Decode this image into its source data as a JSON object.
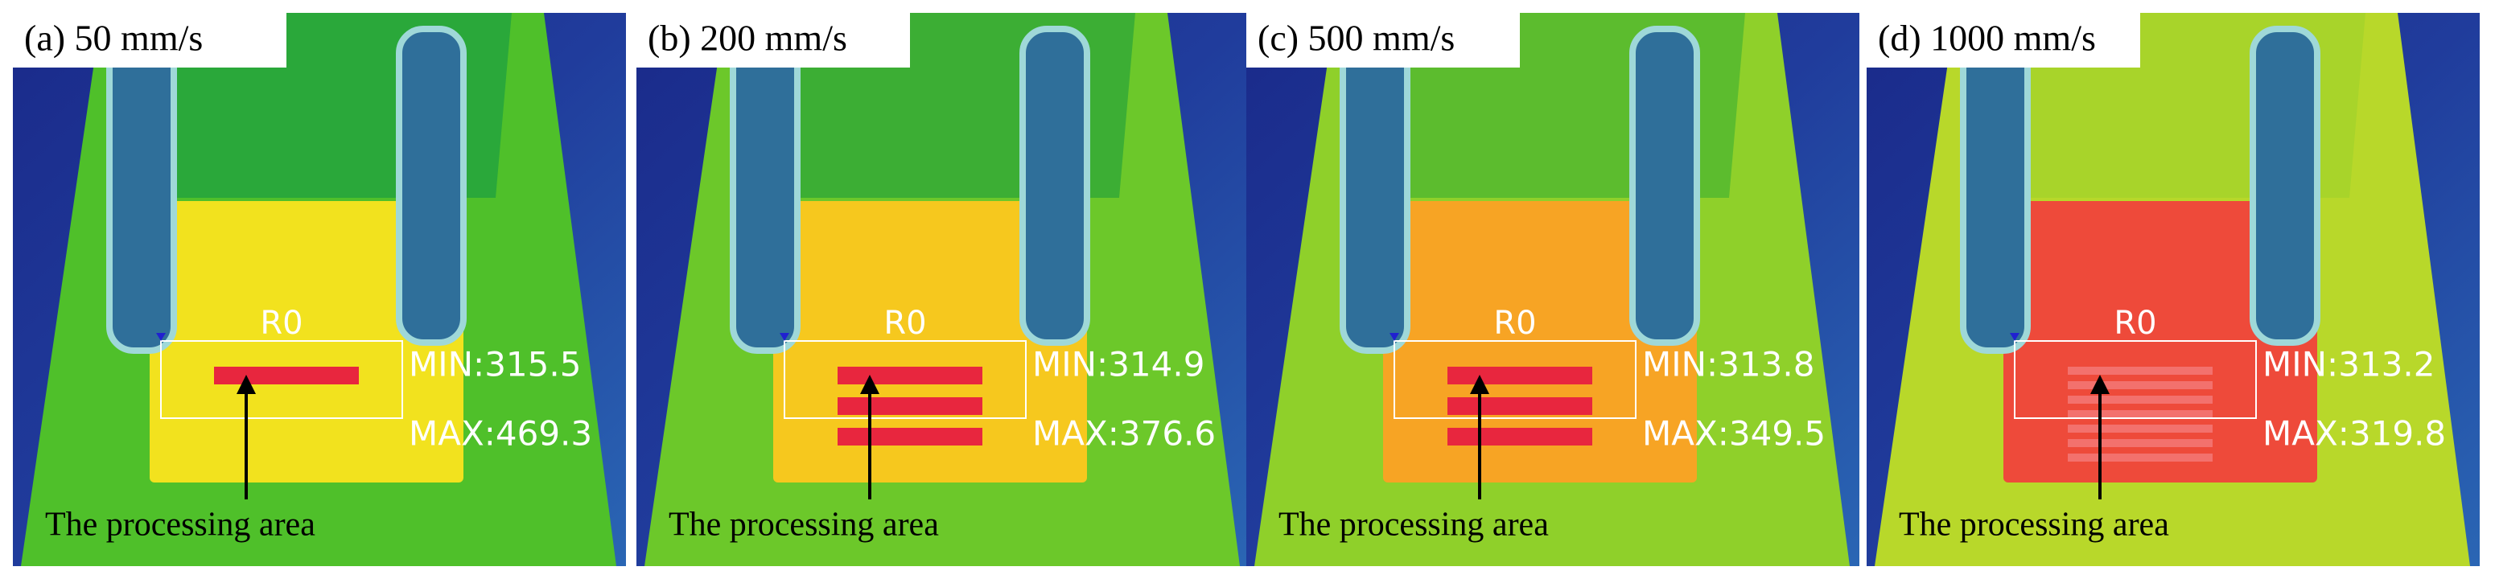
{
  "panels": [
    {
      "label": "(a) 50 mm/s",
      "roi": "R0",
      "min": "MIN:315.5",
      "max": "MAX:469.3",
      "annotation": "The processing area"
    },
    {
      "label": "(b) 200 mm/s",
      "roi": "R0",
      "min": "MIN:314.9",
      "max": "MAX:376.6",
      "annotation": "The processing area"
    },
    {
      "label": "(c) 500 mm/s",
      "roi": "R0",
      "min": "MIN:313.8",
      "max": "MAX:349.5",
      "annotation": "The processing area"
    },
    {
      "label": "(d) 1000 mm/s",
      "roi": "R0",
      "min": "MIN:313.2",
      "max": "MAX:319.8",
      "annotation": "The processing area"
    }
  ]
}
